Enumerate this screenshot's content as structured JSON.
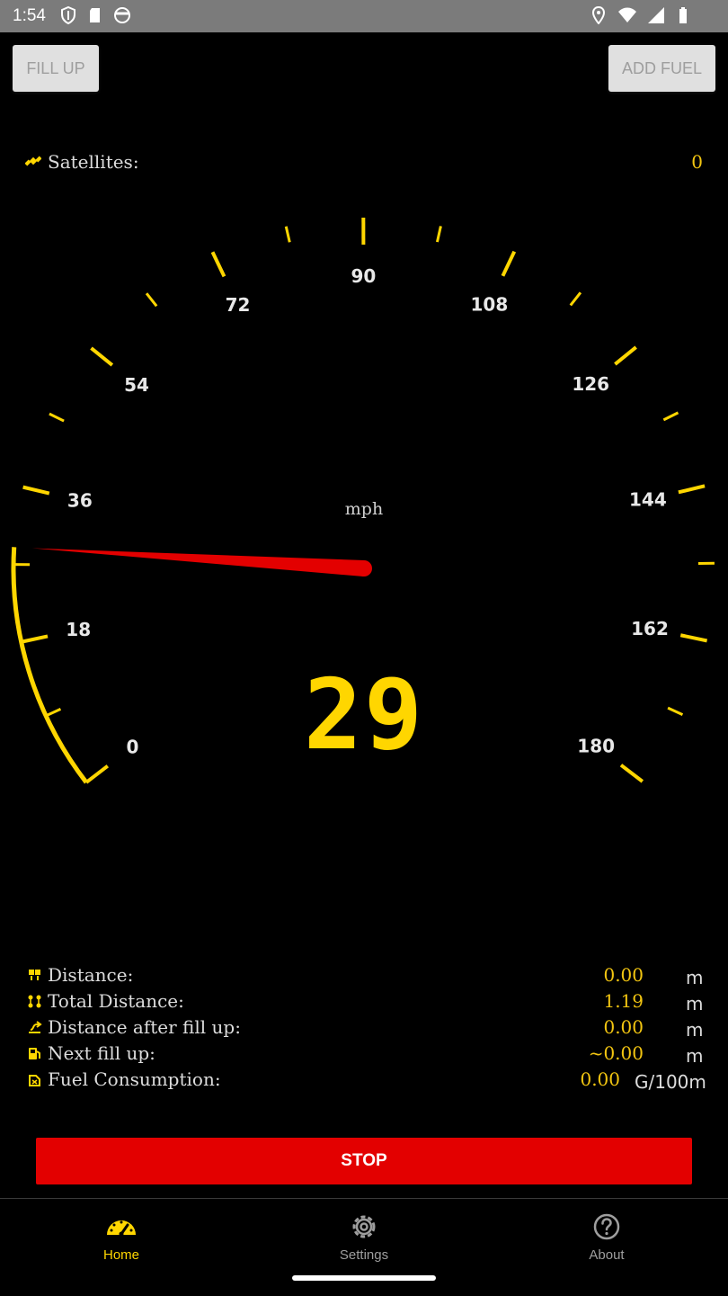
{
  "status_bar": {
    "time": "1:54",
    "icons_left": [
      "shield-icon",
      "sd-card-icon",
      "face-icon"
    ],
    "icons_right": [
      "location-icon",
      "wifi-icon",
      "signal-icon",
      "battery-icon"
    ]
  },
  "top_buttons": {
    "fill_up": "FILL UP",
    "add_fuel": "ADD FUEL"
  },
  "satellites": {
    "label": "Satellites:",
    "value": "0",
    "icon": "satellite-icon"
  },
  "gauge": {
    "unit": "mph",
    "speed": "29",
    "speed_value": 29,
    "min": 0,
    "max": 180,
    "tick_labels": [
      "0",
      "18",
      "36",
      "54",
      "72",
      "90",
      "108",
      "126",
      "144",
      "162",
      "180"
    ],
    "accent_color": "#ffd600",
    "needle_color": "#e30000"
  },
  "info_rows": [
    {
      "icon": "distance-icon",
      "label": "Distance:",
      "value": "0.00",
      "unit": "m"
    },
    {
      "icon": "total-distance-icon",
      "label": "Total Distance:",
      "value": "1.19",
      "unit": "m"
    },
    {
      "icon": "route-icon",
      "label": "Distance after fill up:",
      "value": "0.00",
      "unit": "m"
    },
    {
      "icon": "fuel-pump-icon",
      "label": "Next fill up:",
      "value": "~0.00",
      "unit": "m"
    },
    {
      "icon": "fuel-can-icon",
      "label": "Fuel Consumption:",
      "value": "0.00",
      "unit": "G/100m"
    }
  ],
  "stop_button": "STOP",
  "nav": {
    "home": "Home",
    "settings": "Settings",
    "about": "About",
    "active": "home"
  }
}
